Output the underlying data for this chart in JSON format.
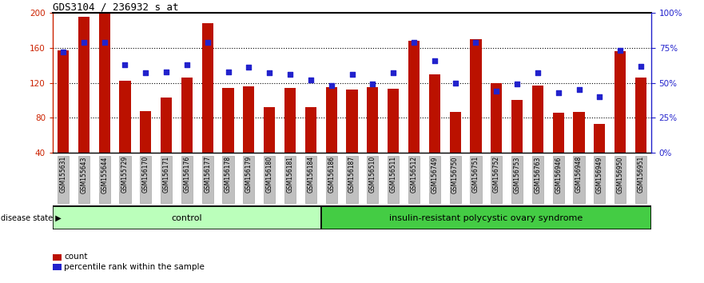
{
  "title": "GDS3104 / 236932_s_at",
  "samples": [
    "GSM155631",
    "GSM155643",
    "GSM155644",
    "GSM155729",
    "GSM156170",
    "GSM156171",
    "GSM156176",
    "GSM156177",
    "GSM156178",
    "GSM156179",
    "GSM156180",
    "GSM156181",
    "GSM156184",
    "GSM156186",
    "GSM156187",
    "GSM156510",
    "GSM156511",
    "GSM156512",
    "GSM156749",
    "GSM156750",
    "GSM156751",
    "GSM156752",
    "GSM156753",
    "GSM156763",
    "GSM156946",
    "GSM156948",
    "GSM156949",
    "GSM156950",
    "GSM156951"
  ],
  "counts": [
    157,
    195,
    200,
    122,
    88,
    103,
    126,
    188,
    114,
    116,
    92,
    114,
    92,
    115,
    112,
    115,
    113,
    168,
    130,
    87,
    170,
    120,
    100,
    117,
    86,
    87,
    73,
    156,
    126
  ],
  "percentiles": [
    72,
    79,
    79,
    63,
    57,
    58,
    63,
    79,
    58,
    61,
    57,
    56,
    52,
    48,
    56,
    49,
    57,
    79,
    66,
    50,
    79,
    44,
    49,
    57,
    43,
    45,
    40,
    73,
    62
  ],
  "n_control": 13,
  "control_label": "control",
  "disease_label": "insulin-resistant polycystic ovary syndrome",
  "ylim_left": [
    40,
    200
  ],
  "ylim_right": [
    0,
    100
  ],
  "yticks_left": [
    40,
    80,
    120,
    160,
    200
  ],
  "yticks_right": [
    0,
    25,
    50,
    75,
    100
  ],
  "ytick_labels_right": [
    "0%",
    "25%",
    "50%",
    "75%",
    "100%"
  ],
  "bar_color": "#BB1100",
  "dot_color": "#2222CC",
  "bar_width": 0.55,
  "bg_color": "#FFFFFF",
  "control_bg": "#BBFFBB",
  "disease_bg": "#44CC44",
  "left_axis_color": "#CC2200",
  "right_axis_color": "#2222CC",
  "xtick_box_color": "#C0C0C0",
  "dotted_lines": [
    80,
    120,
    160
  ]
}
